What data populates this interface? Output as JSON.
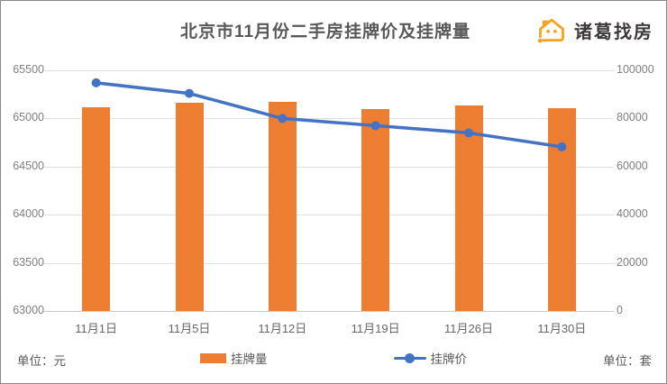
{
  "header": {
    "title": "北京市11月份二手房挂牌价及挂牌量",
    "logo_text": "诸葛找房"
  },
  "footer": {
    "left_unit": "单位：元",
    "right_unit": "单位：套"
  },
  "legend": [
    {
      "label": "挂牌量",
      "marker": "bar"
    },
    {
      "label": "挂牌价",
      "marker": "line"
    }
  ],
  "colors": {
    "bar": "#ED7D31",
    "line": "#4472C4",
    "grid": "#E0E0E0",
    "axis_text": "#7F7F7F",
    "title_text": "#595959",
    "logo_orange": "#F9A11B",
    "logo_text_color": "#3E3A39"
  },
  "chart_data": {
    "type": "combo-bar-line",
    "title": "北京市11月份二手房挂牌价及挂牌量",
    "categories": [
      "11月1日",
      "11月5日",
      "11月12日",
      "11月19日",
      "11月26日",
      "11月30日"
    ],
    "series": [
      {
        "name": "挂牌量",
        "type": "bar",
        "axis": "right",
        "unit": "套",
        "values": [
          84500,
          86400,
          87000,
          83900,
          85500,
          84300
        ]
      },
      {
        "name": "挂牌价",
        "type": "line",
        "axis": "left",
        "unit": "元",
        "values": [
          65370,
          65260,
          65000,
          64925,
          64850,
          64705
        ]
      }
    ],
    "left_axis": {
      "label": "单位：元",
      "min": 63000,
      "max": 65500,
      "ticks": [
        65500,
        65000,
        64500,
        64000,
        63500,
        63000
      ]
    },
    "right_axis": {
      "label": "单位：套",
      "min": 0,
      "max": 100000,
      "ticks": [
        100000,
        80000,
        60000,
        40000,
        20000,
        0
      ]
    },
    "grid": true,
    "legend_position": "bottom"
  }
}
